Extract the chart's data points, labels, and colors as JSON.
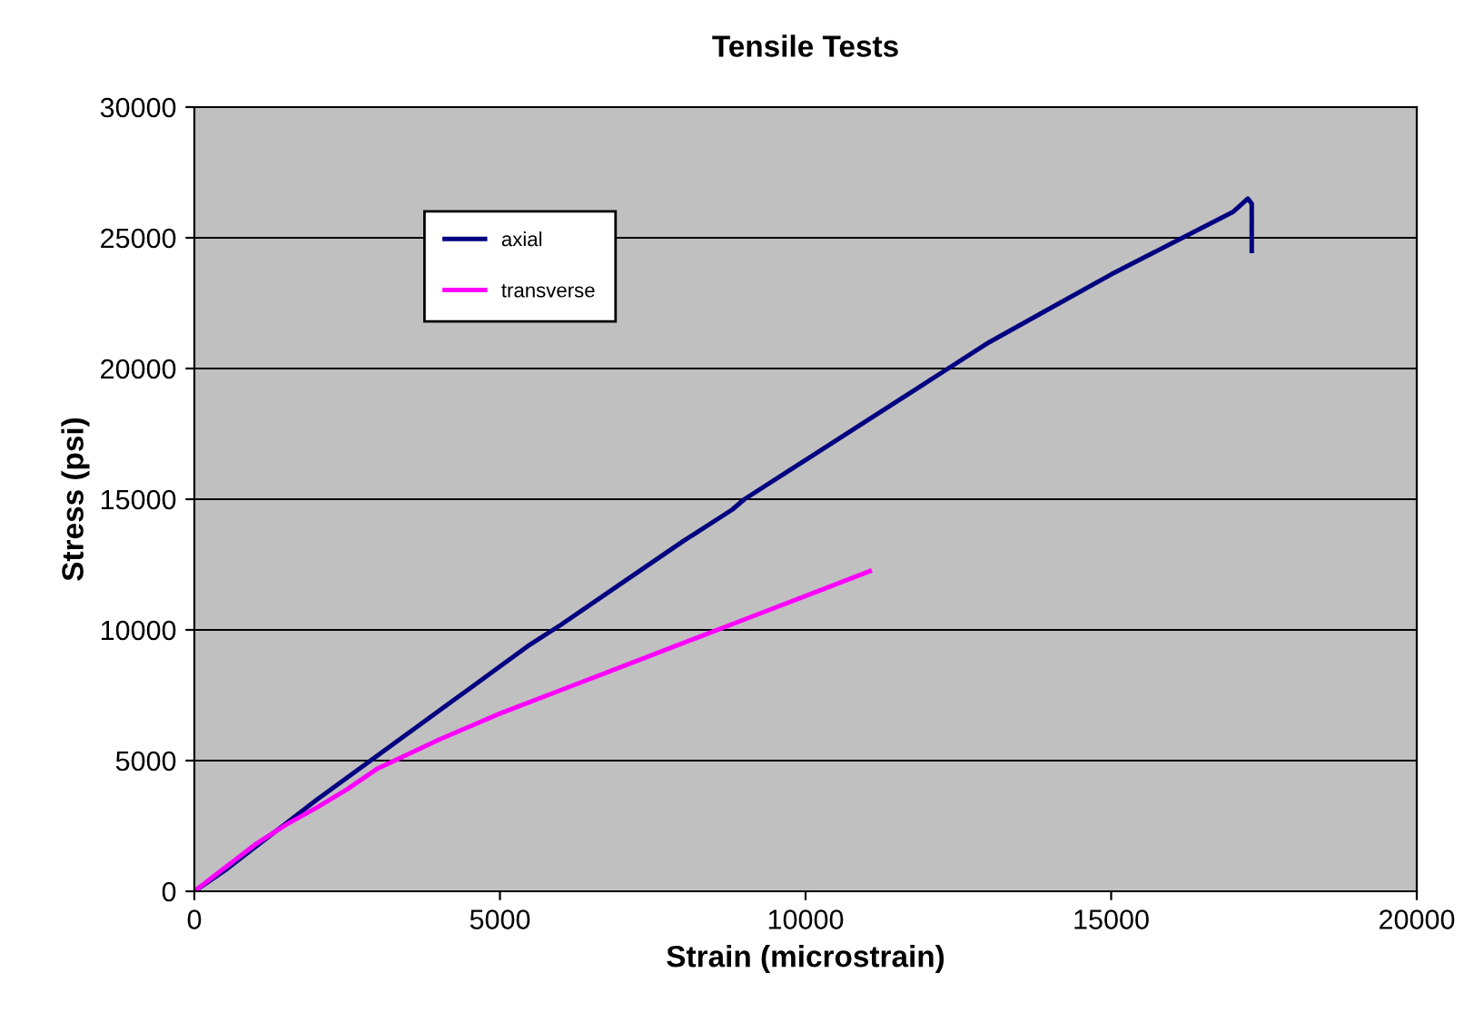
{
  "chart_data": {
    "type": "line",
    "title": "Tensile Tests",
    "xlabel": "Strain (microstrain)",
    "ylabel": "Stress (psi)",
    "xlim": [
      0,
      20000
    ],
    "xticks": [
      0,
      5000,
      10000,
      15000,
      20000
    ],
    "ylim": [
      0,
      30000
    ],
    "yticks": [
      0,
      5000,
      10000,
      15000,
      20000,
      25000,
      30000
    ],
    "grid": "y",
    "legend": "top left",
    "marker": "none",
    "line_style": "solid",
    "series": [
      {
        "name": "axial",
        "color": "#000080",
        "x": [
          0,
          500,
          1000,
          1500,
          2000,
          2500,
          3000,
          4000,
          5000,
          5500,
          6000,
          7000,
          8000,
          8800,
          9000,
          10000,
          11000,
          12000,
          12200,
          13000,
          14000,
          15000,
          16000,
          16500,
          17000,
          17236,
          17300,
          17300
        ],
        "values": [
          0,
          800,
          1700,
          2600,
          3500,
          4350,
          5200,
          6900,
          8600,
          9450,
          10200,
          11800,
          13400,
          14600,
          15000,
          16500,
          18000,
          19500,
          19800,
          21000,
          22300,
          23600,
          24800,
          25400,
          26000,
          26500,
          26300,
          24500
        ]
      },
      {
        "name": "transverse",
        "color": "#ff00ff",
        "x": [
          0,
          500,
          1000,
          1500,
          2000,
          2500,
          3000,
          4000,
          5000,
          6000,
          7000,
          8000,
          9000,
          10000,
          11050
        ],
        "values": [
          0,
          900,
          1800,
          2550,
          3200,
          3900,
          4700,
          5800,
          6800,
          7700,
          8600,
          9500,
          10400,
          11300,
          12250
        ]
      }
    ]
  }
}
